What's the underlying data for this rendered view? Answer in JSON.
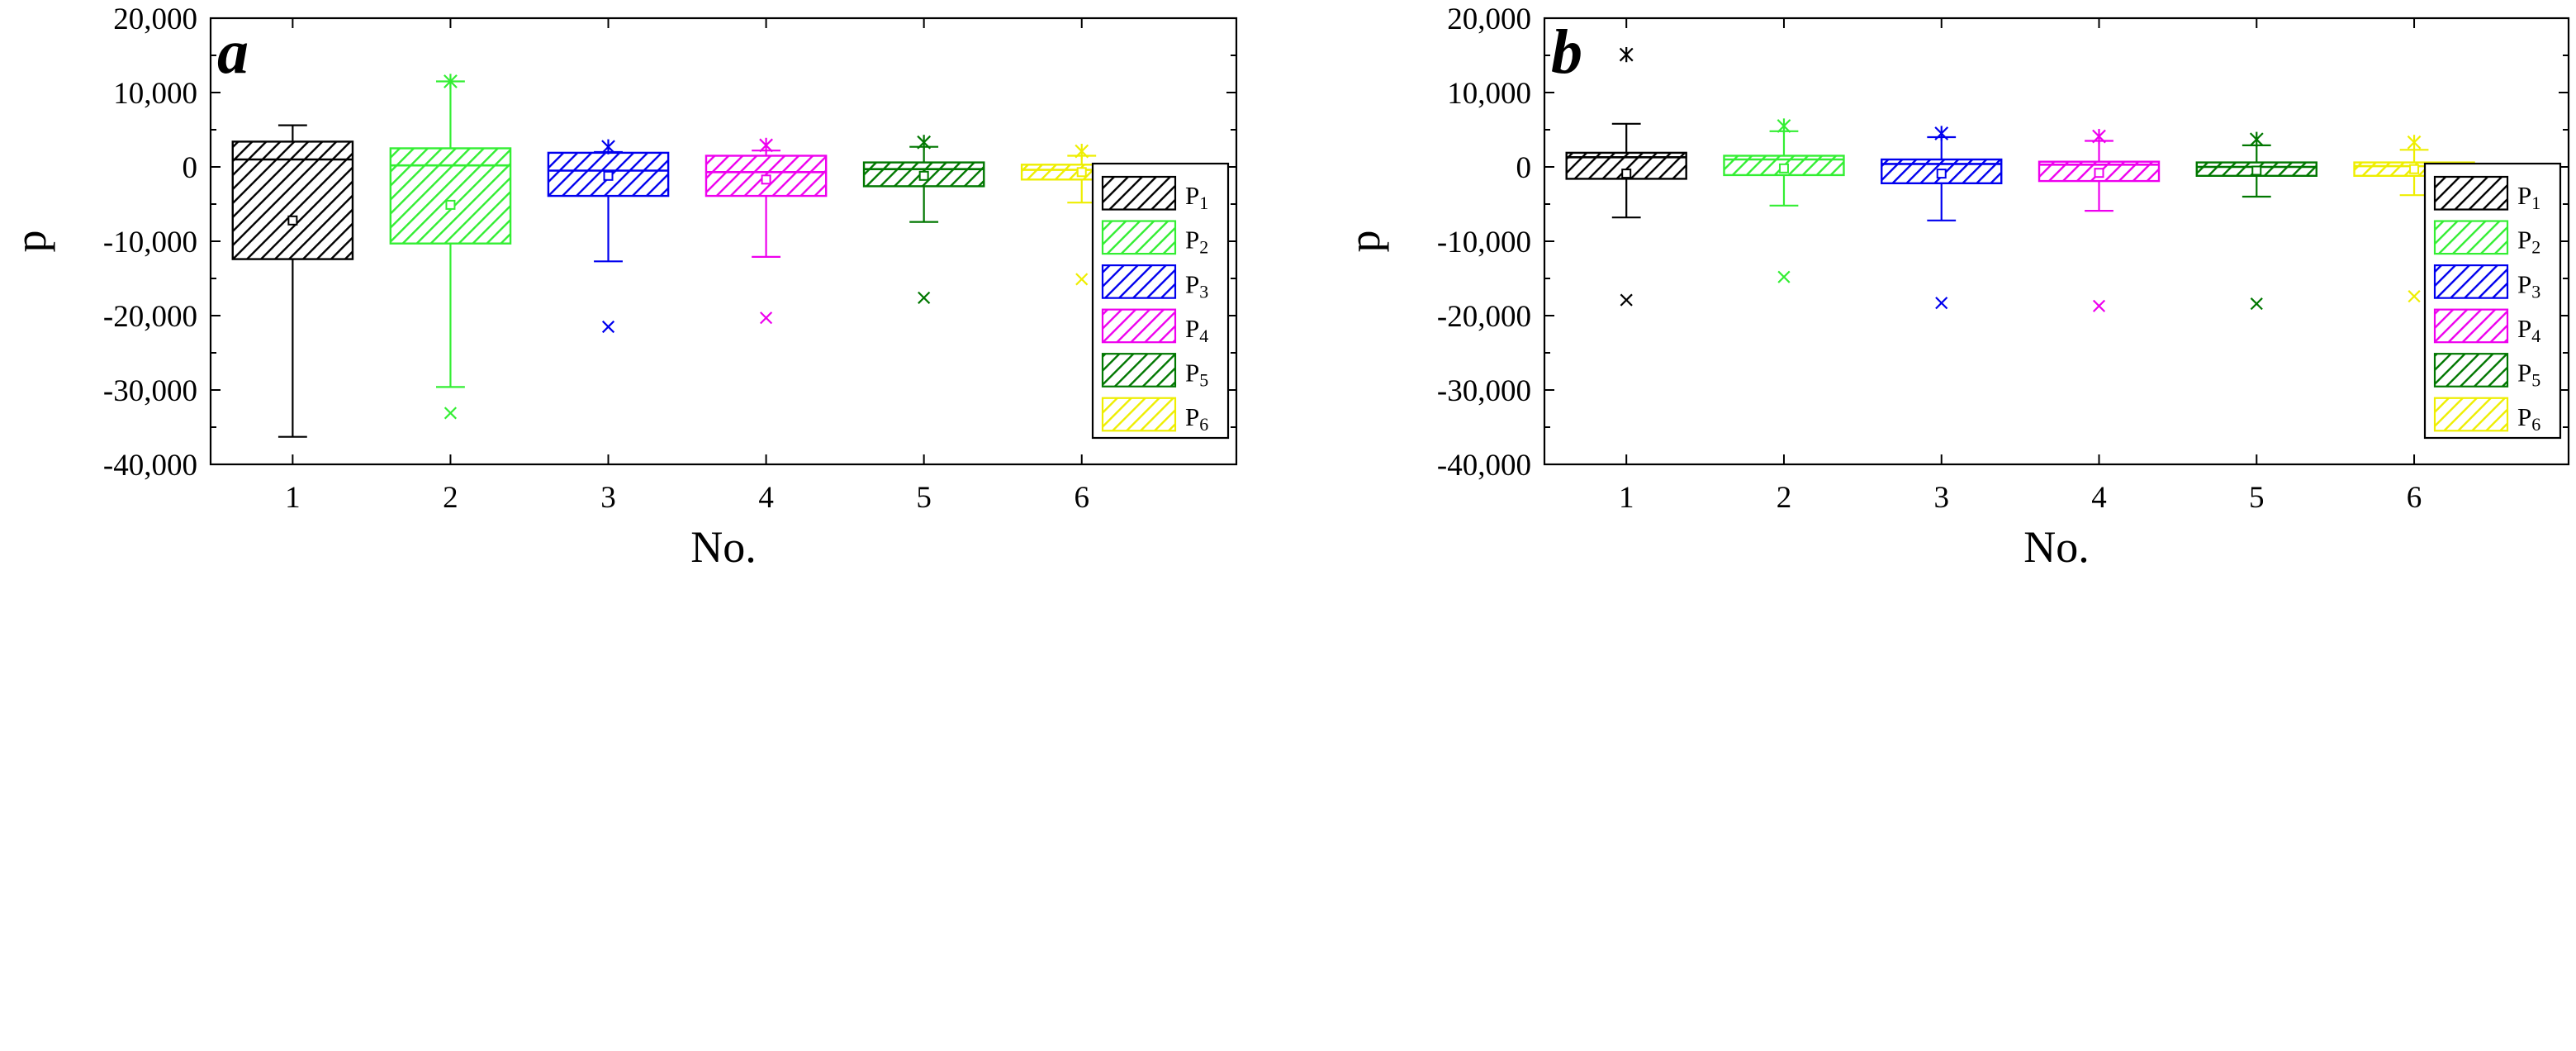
{
  "chart_data": [
    {
      "panel_label": "a",
      "type": "box",
      "title": "",
      "xlabel": "No.",
      "ylabel": "p",
      "ylim": [
        -40000,
        20000
      ],
      "categories": [
        "1",
        "2",
        "3",
        "4",
        "5",
        "6"
      ],
      "ytick_values": [
        20000,
        10000,
        0,
        -10000,
        -20000,
        -30000,
        -40000
      ],
      "ytick_labels": [
        "20,000",
        "10,000",
        "0",
        "-10,000",
        "-20,000",
        "-30,000",
        "-40,000"
      ],
      "legend_position": "bottom-right",
      "series": [
        {
          "name": "P1",
          "label_main": "P",
          "label_sub": "1",
          "color": "#000000",
          "q1": -12400,
          "median": 1000,
          "q3": 3400,
          "mean": -7200,
          "whisker_low": -36300,
          "whisker_high": 5600,
          "outlier_max": null,
          "outlier_min": null
        },
        {
          "name": "P2",
          "label_main": "P",
          "label_sub": "2",
          "color": "#33ee33",
          "q1": -10300,
          "median": 200,
          "q3": 2500,
          "mean": -5100,
          "whisker_low": -29600,
          "whisker_high": 11500,
          "outlier_max": 11500,
          "outlier_min": -33100
        },
        {
          "name": "P3",
          "label_main": "P",
          "label_sub": "3",
          "color": "#0000ee",
          "q1": -3900,
          "median": -500,
          "q3": 1900,
          "mean": -1200,
          "whisker_low": -12700,
          "whisker_high": 2000,
          "outlier_max": 2700,
          "outlier_min": -21500
        },
        {
          "name": "P4",
          "label_main": "P",
          "label_sub": "4",
          "color": "#ee00ee",
          "q1": -3900,
          "median": -700,
          "q3": 1500,
          "mean": -1700,
          "whisker_low": -12100,
          "whisker_high": 2200,
          "outlier_max": 2900,
          "outlier_min": -20300
        },
        {
          "name": "P5",
          "label_main": "P",
          "label_sub": "5",
          "color": "#007700",
          "q1": -2600,
          "median": -300,
          "q3": 600,
          "mean": -1200,
          "whisker_low": -7400,
          "whisker_high": 2700,
          "outlier_max": 3300,
          "outlier_min": -17600
        },
        {
          "name": "P6",
          "label_main": "P",
          "label_sub": "6",
          "color": "#eeee00",
          "q1": -1700,
          "median": -400,
          "q3": 300,
          "mean": -700,
          "whisker_low": -4800,
          "whisker_high": 1500,
          "outlier_max": 2100,
          "outlier_min": -15100
        }
      ]
    },
    {
      "panel_label": "b",
      "type": "box",
      "title": "",
      "xlabel": "No.",
      "ylabel": "p",
      "ylim": [
        -40000,
        20000
      ],
      "categories": [
        "1",
        "2",
        "3",
        "4",
        "5",
        "6"
      ],
      "ytick_values": [
        20000,
        10000,
        0,
        -10000,
        -20000,
        -30000,
        -40000
      ],
      "ytick_labels": [
        "20,000",
        "10,000",
        "0",
        "-10,000",
        "-20,000",
        "-30,000",
        "-40,000"
      ],
      "legend_position": "bottom-right",
      "series": [
        {
          "name": "P1",
          "label_main": "P",
          "label_sub": "1",
          "color": "#000000",
          "q1": -1600,
          "median": 1300,
          "q3": 1900,
          "mean": -900,
          "whisker_low": -6800,
          "whisker_high": 5800,
          "outlier_max": 15100,
          "outlier_min": -17900
        },
        {
          "name": "P2",
          "label_main": "P",
          "label_sub": "2",
          "color": "#33ee33",
          "q1": -1100,
          "median": 1000,
          "q3": 1500,
          "mean": -200,
          "whisker_low": -5200,
          "whisker_high": 4800,
          "outlier_max": 5500,
          "outlier_min": -14800
        },
        {
          "name": "P3",
          "label_main": "P",
          "label_sub": "3",
          "color": "#0000ee",
          "q1": -2200,
          "median": 400,
          "q3": 1000,
          "mean": -900,
          "whisker_low": -7200,
          "whisker_high": 4000,
          "outlier_max": 4500,
          "outlier_min": -18300
        },
        {
          "name": "P4",
          "label_main": "P",
          "label_sub": "4",
          "color": "#ee00ee",
          "q1": -1900,
          "median": 300,
          "q3": 700,
          "mean": -800,
          "whisker_low": -5900,
          "whisker_high": 3500,
          "outlier_max": 4100,
          "outlier_min": -18700
        },
        {
          "name": "P5",
          "label_main": "P",
          "label_sub": "5",
          "color": "#007700",
          "q1": -1200,
          "median": 0,
          "q3": 600,
          "mean": -500,
          "whisker_low": -4000,
          "whisker_high": 2900,
          "outlier_max": 3700,
          "outlier_min": -18400
        },
        {
          "name": "P6",
          "label_main": "P",
          "label_sub": "6",
          "color": "#eeee00",
          "q1": -1200,
          "median": 100,
          "q3": 600,
          "mean": -300,
          "whisker_low": -3800,
          "whisker_high": 2300,
          "outlier_max": 3300,
          "outlier_min": -17400
        }
      ]
    }
  ]
}
